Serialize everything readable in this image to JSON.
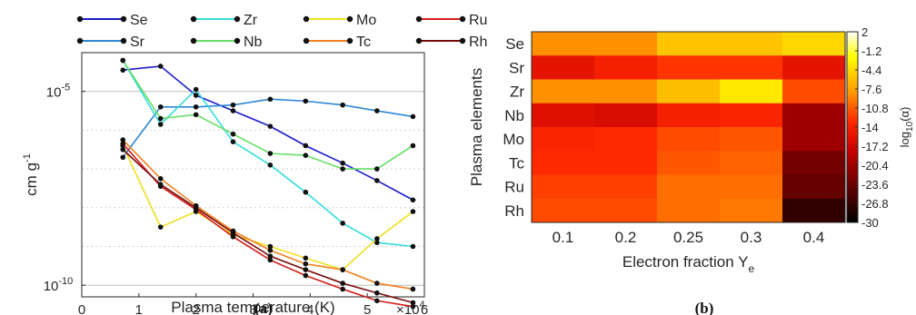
{
  "chart_data": [
    {
      "type": "line",
      "caption": "(a)",
      "xlabel": "Plasma temperature (K)",
      "ylabel": "cm g",
      "ylabel_sup": "-1",
      "x_multiplier_base": "×10",
      "x_multiplier_exp": "4",
      "xlim": [
        0,
        60000
      ],
      "ylim_log10": [
        -10.3,
        -4.0
      ],
      "yscale": "log",
      "x_ticks": [
        0,
        10000,
        20000,
        30000,
        40000,
        50000,
        60000
      ],
      "x_tick_labels": [
        "0",
        "1",
        "2",
        "3",
        "4",
        "5",
        "6"
      ],
      "y_tick_labels": [
        {
          "base": "10",
          "exp": "-5"
        },
        {
          "base": "10",
          "exp": "-10"
        }
      ],
      "y_ticks_log10": [
        -5,
        -10
      ],
      "grid": "dotted horizontal",
      "legend_position": "top",
      "x": [
        7200,
        13800,
        20000,
        26500,
        33000,
        39200,
        45700,
        51700,
        58000
      ],
      "series": [
        {
          "name": "Se",
          "color": "#1a1acc",
          "log10_values": [
            -4.45,
            -4.35,
            -5.1,
            -5.5,
            -5.9,
            -6.4,
            -6.85,
            -7.3,
            -7.8
          ]
        },
        {
          "name": "Sr",
          "color": "#2e86d6",
          "log10_values": [
            -6.7,
            -5.4,
            -5.4,
            -5.35,
            -5.2,
            -5.25,
            -5.35,
            -5.5,
            -5.65
          ]
        },
        {
          "name": "Zr",
          "color": "#33dddd",
          "log10_values": [
            -4.2,
            -5.85,
            -4.95,
            -6.3,
            -6.9,
            -7.6,
            -8.4,
            -8.9,
            -9.0
          ]
        },
        {
          "name": "Nb",
          "color": "#66dd66",
          "log10_values": [
            -4.2,
            -5.7,
            -5.6,
            -6.1,
            -6.6,
            -6.65,
            -7.0,
            -7.0,
            -6.4
          ]
        },
        {
          "name": "Mo",
          "color": "#f0e020",
          "log10_values": [
            -6.4,
            -8.5,
            -8.1,
            -8.7,
            -9.0,
            -9.3,
            -9.6,
            -8.8,
            -8.1
          ]
        },
        {
          "name": "Tc",
          "color": "#f08020",
          "log10_values": [
            -6.25,
            -7.25,
            -7.95,
            -8.6,
            -9.1,
            -9.45,
            -9.6,
            -9.95,
            -10.1
          ]
        },
        {
          "name": "Ru",
          "color": "#d41c1c",
          "log10_values": [
            -6.35,
            -7.45,
            -8.05,
            -8.75,
            -9.35,
            -9.75,
            -10.1,
            -10.4,
            -10.55
          ]
        },
        {
          "name": "Rh",
          "color": "#7a0a0a",
          "log10_values": [
            -6.5,
            -7.4,
            -8.0,
            -8.65,
            -9.25,
            -9.6,
            -9.95,
            -10.2,
            -10.45
          ]
        }
      ]
    },
    {
      "type": "heatmap",
      "caption": "(b)",
      "xlabel": "Electron fraction Y",
      "xlabel_sub": "e",
      "ylabel": "Plasma elements",
      "colorbar_label": "log",
      "colorbar_label_sub": "10",
      "colorbar_label_tail": "(α)",
      "colorbar_range": [
        -30,
        2
      ],
      "colorbar_ticks": [
        "2",
        "-1.2",
        "-4.4",
        "-7.6",
        "-10.8",
        "-14",
        "-17.2",
        "-20.4",
        "-23.6",
        "-26.8",
        "-30"
      ],
      "x_categories": [
        "0.1",
        "0.2",
        "0.25",
        "0.3",
        "0.4"
      ],
      "y_categories": [
        "Se",
        "Sr",
        "Zr",
        "Nb",
        "Mo",
        "Tc",
        "Ru",
        "Rh"
      ],
      "values": [
        [
          -8.5,
          -8.5,
          -5.5,
          -5.5,
          -4.5
        ],
        [
          -15.5,
          -14,
          -12.5,
          -12.5,
          -15.5
        ],
        [
          -8.5,
          -8.5,
          -6,
          -3.5,
          -11.5
        ],
        [
          -16,
          -16.5,
          -14,
          -13.5,
          -20.5
        ],
        [
          -13.5,
          -13,
          -11.5,
          -11,
          -20.5
        ],
        [
          -13,
          -13,
          -11,
          -10.5,
          -23
        ],
        [
          -12,
          -12,
          -10,
          -10,
          -24
        ],
        [
          -11.5,
          -11.5,
          -10,
          -9.5,
          -27
        ]
      ]
    }
  ]
}
